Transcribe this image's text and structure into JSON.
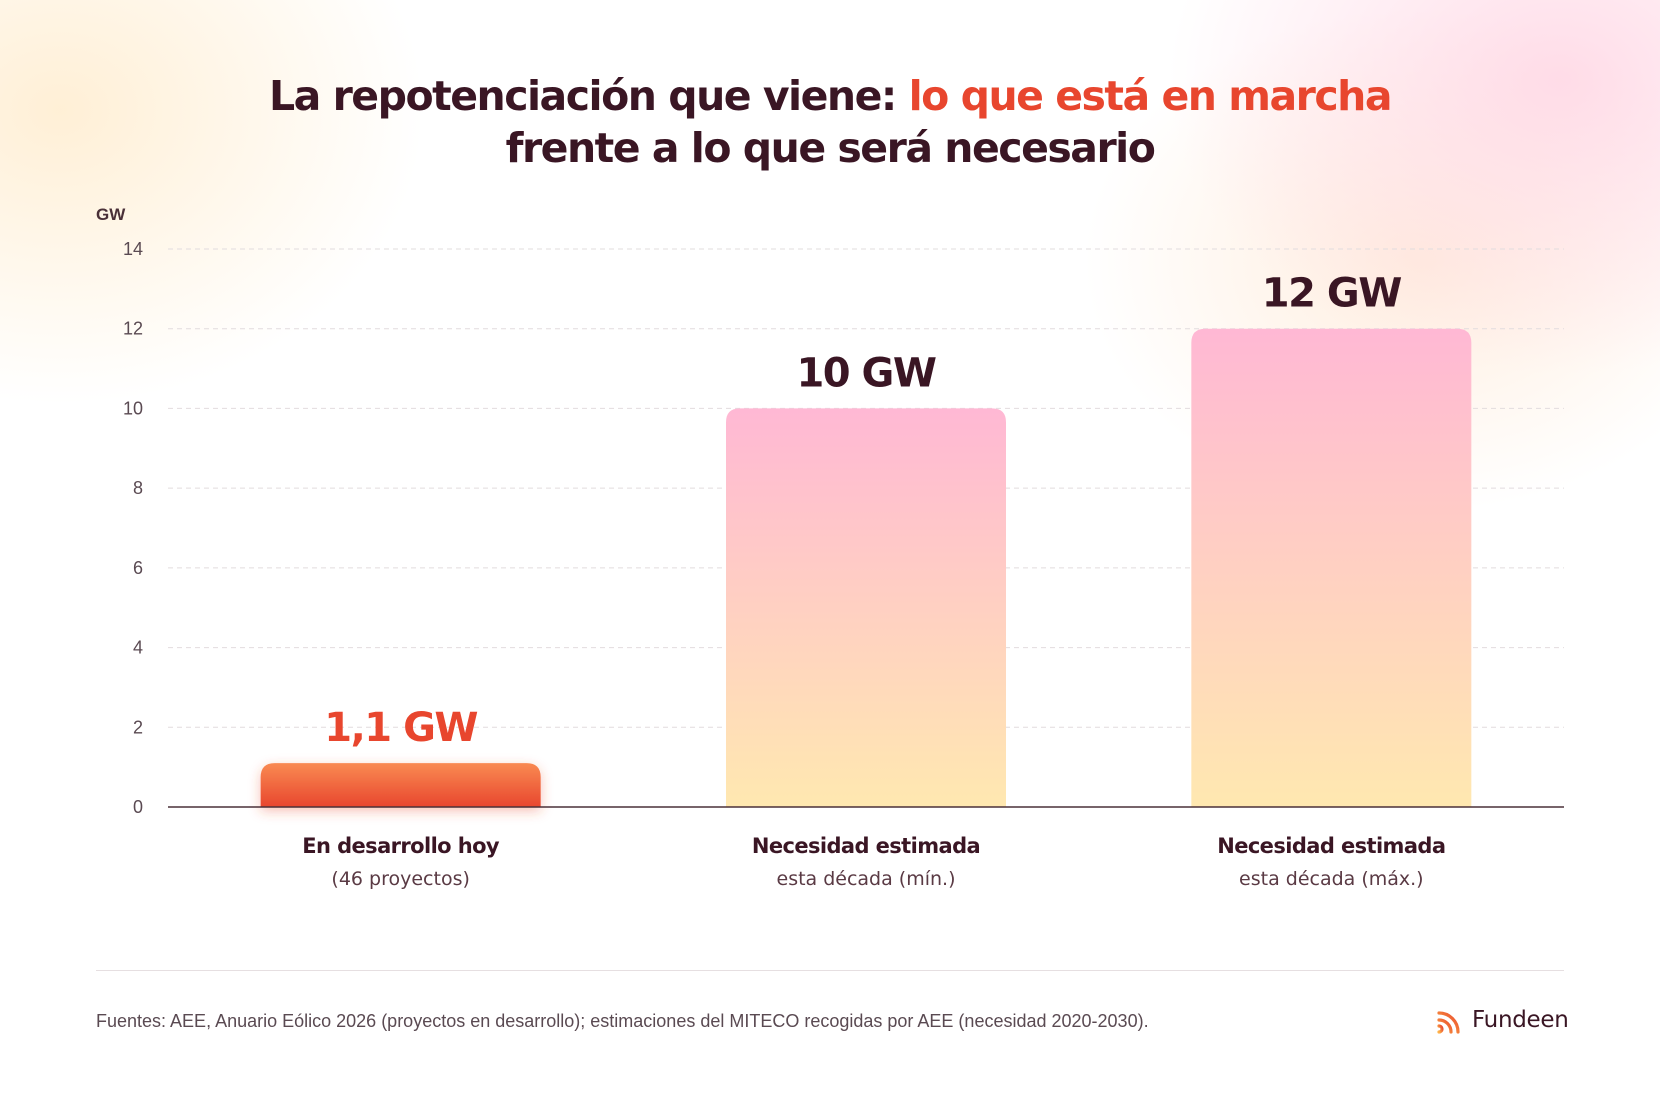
{
  "title": {
    "part1": "La repotenciación que viene: ",
    "accent": "lo que está en marcha",
    "line2": "frente a lo que será necesario"
  },
  "chart_data": {
    "type": "bar",
    "unit_label": "GW",
    "ylim": [
      0,
      14
    ],
    "yticks": [
      0,
      2,
      4,
      6,
      8,
      10,
      12,
      14
    ],
    "grid": true,
    "categories": [
      {
        "main": "En desarrollo hoy",
        "sub": "(46 proyectos)"
      },
      {
        "main": "Necesidad estimada",
        "sub": "esta década (mín.)"
      },
      {
        "main": "Necesidad estimada",
        "sub": "esta década (máx.)"
      }
    ],
    "values": [
      1.1,
      10,
      12
    ],
    "value_labels": [
      "1,1 GW",
      "10 GW",
      "12 GW"
    ],
    "colors": {
      "highlight_top": "#f98a52",
      "highlight_bottom": "#e8462e",
      "highlight_label": "#e8462e",
      "muted_top": "#ffb8d4",
      "muted_bottom": "#ffe8b0",
      "label": "#3a1624"
    }
  },
  "footer": {
    "source": "Fuentes: AEE, Anuario Eólico 2026 (proyectos en desarrollo); estimaciones del MITECO recogidas por AEE (necesidad 2020-2030)."
  },
  "brand": {
    "name": "Fundeen",
    "logo_icon": "signal-waves-icon"
  }
}
